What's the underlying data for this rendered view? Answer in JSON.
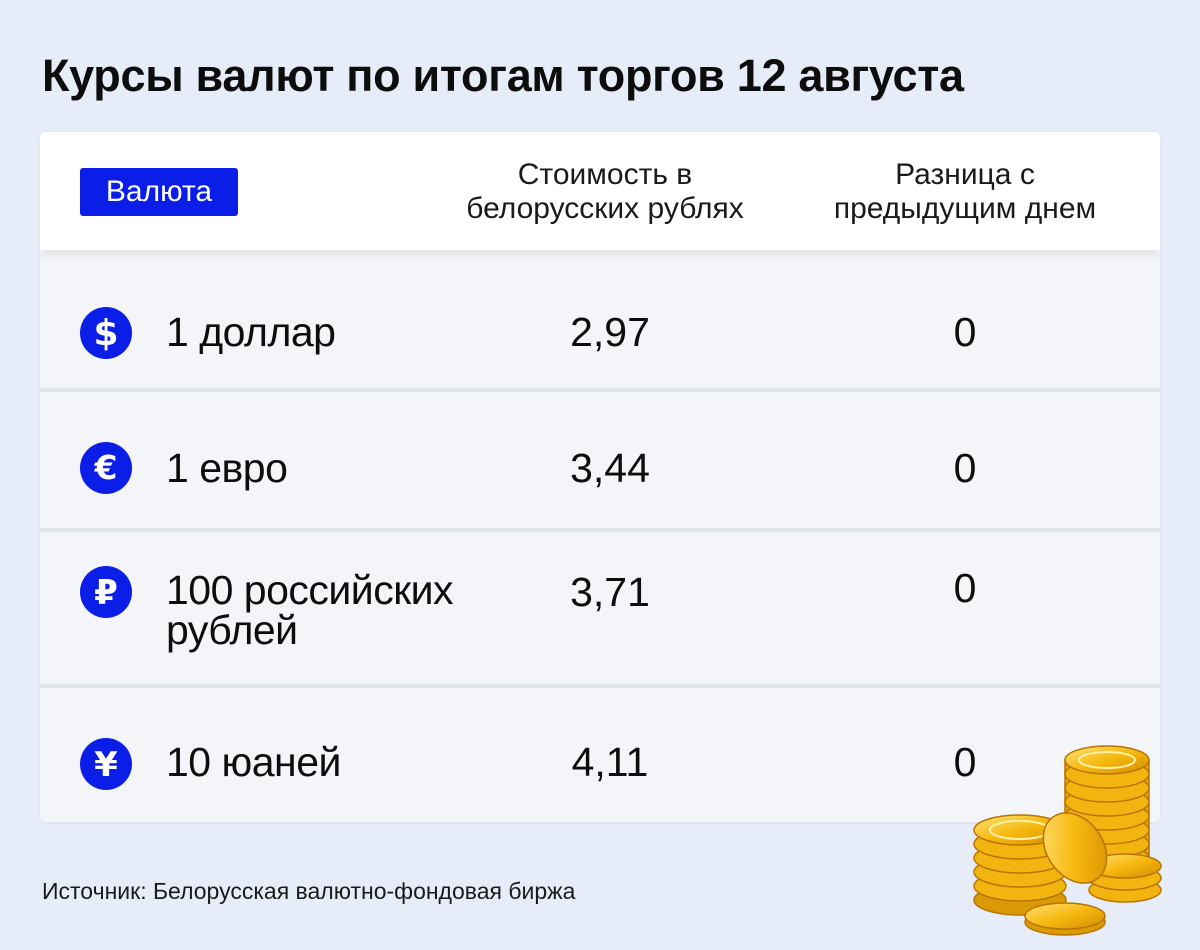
{
  "title": "Курсы валют по итогам торгов 12 августа",
  "table": {
    "header": {
      "currency_label": "Валюта",
      "value_line1": "Стоимость в",
      "value_line2": "белорусских рублях",
      "diff_line1": "Разница с",
      "diff_line2": "предыдущим днем"
    },
    "rows": [
      {
        "icon": "dollar-icon",
        "name_line1": "1 доллар",
        "name_line2": "",
        "value": "2,97",
        "diff": "0"
      },
      {
        "icon": "euro-icon",
        "name_line1": "1 евро",
        "name_line2": "",
        "value": "3,44",
        "diff": "0"
      },
      {
        "icon": "ruble-icon",
        "name_line1": "100 российских",
        "name_line2": "рублей",
        "value": "3,71",
        "diff": "0"
      },
      {
        "icon": "yuan-icon",
        "name_line1": "10 юаней",
        "name_line2": "",
        "value": "4,11",
        "diff": "0"
      }
    ]
  },
  "source": "Источник: Белорусская валютно-фондовая биржа",
  "colors": {
    "accent": "#0a1ee8",
    "background": "#e6edf8",
    "row_background": "#f3f5f8",
    "coin_gold": "#f5b80e"
  }
}
